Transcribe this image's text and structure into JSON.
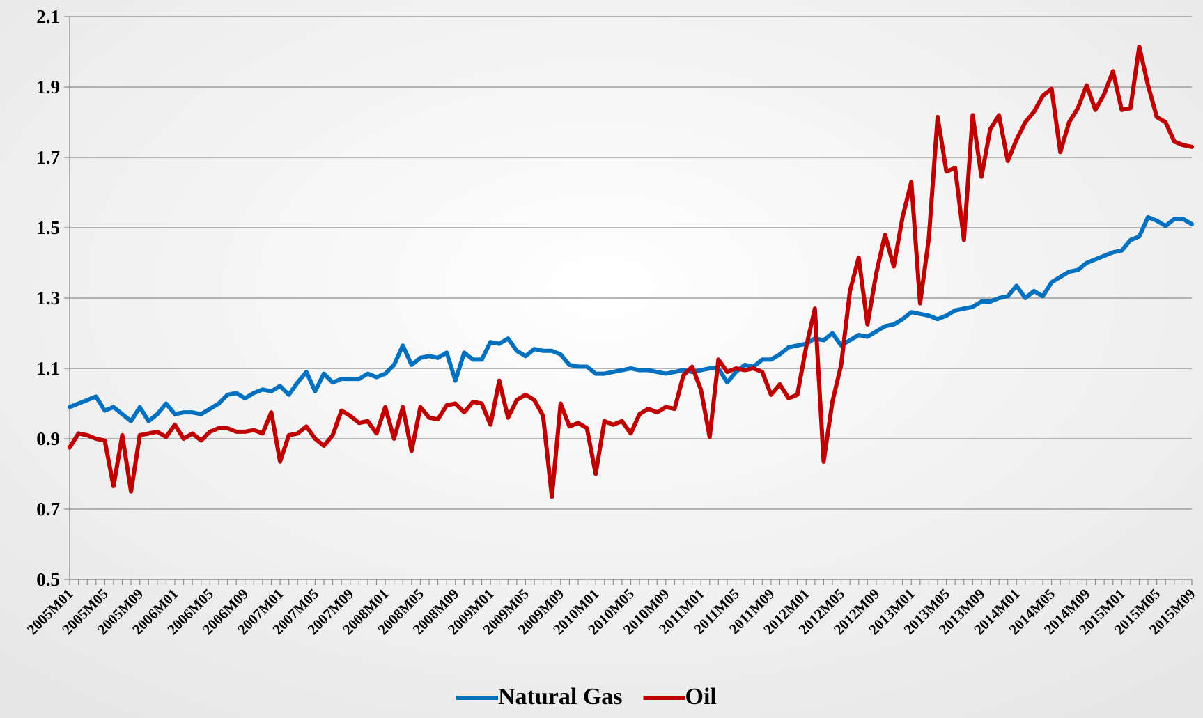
{
  "chart_data": {
    "type": "line",
    "categories": [
      "2005M01",
      null,
      null,
      null,
      "2005M05",
      null,
      null,
      null,
      "2005M09",
      null,
      null,
      null,
      "2006M01",
      null,
      null,
      null,
      "2006M05",
      null,
      null,
      null,
      "2006M09",
      null,
      null,
      null,
      "2007M01",
      null,
      null,
      null,
      "2007M05",
      null,
      null,
      null,
      "2007M09",
      null,
      null,
      null,
      "2008M01",
      null,
      null,
      null,
      "2008M05",
      null,
      null,
      null,
      "2008M09",
      null,
      null,
      null,
      "2009M01",
      null,
      null,
      null,
      "2009M05",
      null,
      null,
      null,
      "2009M09",
      null,
      null,
      null,
      "2010M01",
      null,
      null,
      null,
      "2010M05",
      null,
      null,
      null,
      "2010M09",
      null,
      null,
      null,
      "2011M01",
      null,
      null,
      null,
      "2011M05",
      null,
      null,
      null,
      "2011M09",
      null,
      null,
      null,
      "2012M01",
      null,
      null,
      null,
      "2012M05",
      null,
      null,
      null,
      "2012M09",
      null,
      null,
      null,
      "2013M01",
      null,
      null,
      null,
      "2013M05",
      null,
      null,
      null,
      "2013M09",
      null,
      null,
      null,
      "2014M01",
      null,
      null,
      null,
      "2014M05",
      null,
      null,
      null,
      "2014M09",
      null,
      null,
      null,
      "2015M01",
      null,
      null,
      null,
      "2015M05",
      null,
      null,
      null,
      "2015M09"
    ],
    "series": [
      {
        "name": "Natural Gas",
        "color": "#0070c0",
        "values": [
          0.99,
          1.0,
          1.01,
          1.02,
          0.98,
          0.99,
          0.97,
          0.95,
          0.99,
          0.95,
          0.97,
          1.0,
          0.97,
          0.975,
          0.975,
          0.97,
          0.985,
          1.0,
          1.025,
          1.03,
          1.015,
          1.03,
          1.04,
          1.035,
          1.05,
          1.025,
          1.06,
          1.09,
          1.035,
          1.085,
          1.06,
          1.07,
          1.07,
          1.07,
          1.085,
          1.075,
          1.085,
          1.11,
          1.165,
          1.11,
          1.13,
          1.135,
          1.13,
          1.145,
          1.065,
          1.145,
          1.125,
          1.125,
          1.175,
          1.17,
          1.185,
          1.15,
          1.135,
          1.155,
          1.15,
          1.15,
          1.14,
          1.11,
          1.105,
          1.105,
          1.085,
          1.085,
          1.09,
          1.095,
          1.1,
          1.095,
          1.095,
          1.09,
          1.085,
          1.09,
          1.095,
          1.09,
          1.095,
          1.1,
          1.1,
          1.06,
          1.09,
          1.11,
          1.105,
          1.125,
          1.125,
          1.14,
          1.16,
          1.165,
          1.17,
          1.185,
          1.18,
          1.2,
          1.165,
          1.18,
          1.195,
          1.19,
          1.205,
          1.22,
          1.225,
          1.24,
          1.26,
          1.255,
          1.25,
          1.24,
          1.25,
          1.265,
          1.27,
          1.275,
          1.29,
          1.29,
          1.3,
          1.305,
          1.335,
          1.3,
          1.32,
          1.305,
          1.345,
          1.36,
          1.375,
          1.38,
          1.4,
          1.41,
          1.42,
          1.43,
          1.435,
          1.465,
          1.475,
          1.53,
          1.52,
          1.505,
          1.525,
          1.525,
          1.51
        ]
      },
      {
        "name": "Oil",
        "color": "#c00000",
        "values": [
          0.875,
          0.915,
          0.91,
          0.9,
          0.895,
          0.765,
          0.91,
          0.75,
          0.91,
          0.915,
          0.92,
          0.905,
          0.94,
          0.9,
          0.915,
          0.895,
          0.92,
          0.93,
          0.93,
          0.92,
          0.92,
          0.925,
          0.915,
          0.975,
          0.835,
          0.91,
          0.915,
          0.935,
          0.9,
          0.88,
          0.91,
          0.98,
          0.965,
          0.945,
          0.95,
          0.915,
          0.99,
          0.9,
          0.99,
          0.865,
          0.99,
          0.96,
          0.955,
          0.995,
          1.0,
          0.975,
          1.005,
          1.0,
          0.94,
          1.065,
          0.96,
          1.01,
          1.025,
          1.01,
          0.965,
          0.735,
          1.0,
          0.935,
          0.945,
          0.93,
          0.8,
          0.95,
          0.94,
          0.95,
          0.915,
          0.97,
          0.985,
          0.975,
          0.99,
          0.985,
          1.08,
          1.105,
          1.04,
          0.905,
          1.125,
          1.09,
          1.1,
          1.095,
          1.1,
          1.09,
          1.025,
          1.055,
          1.015,
          1.025,
          1.16,
          1.27,
          0.835,
          1.005,
          1.11,
          1.32,
          1.415,
          1.225,
          1.37,
          1.48,
          1.39,
          1.53,
          1.63,
          1.285,
          1.47,
          1.815,
          1.66,
          1.67,
          1.465,
          1.82,
          1.645,
          1.78,
          1.82,
          1.69,
          1.75,
          1.8,
          1.83,
          1.875,
          1.895,
          1.715,
          1.8,
          1.84,
          1.905,
          1.835,
          1.88,
          1.945,
          1.835,
          1.84,
          2.015,
          1.905,
          1.815,
          1.8,
          1.745,
          1.735,
          1.73
        ]
      }
    ],
    "ylim": [
      0.5,
      2.1
    ],
    "yticks": [
      0.5,
      0.7,
      0.9,
      1.1,
      1.3,
      1.5,
      1.7,
      1.9,
      2.1
    ],
    "grid": true,
    "legend": "bottom"
  }
}
